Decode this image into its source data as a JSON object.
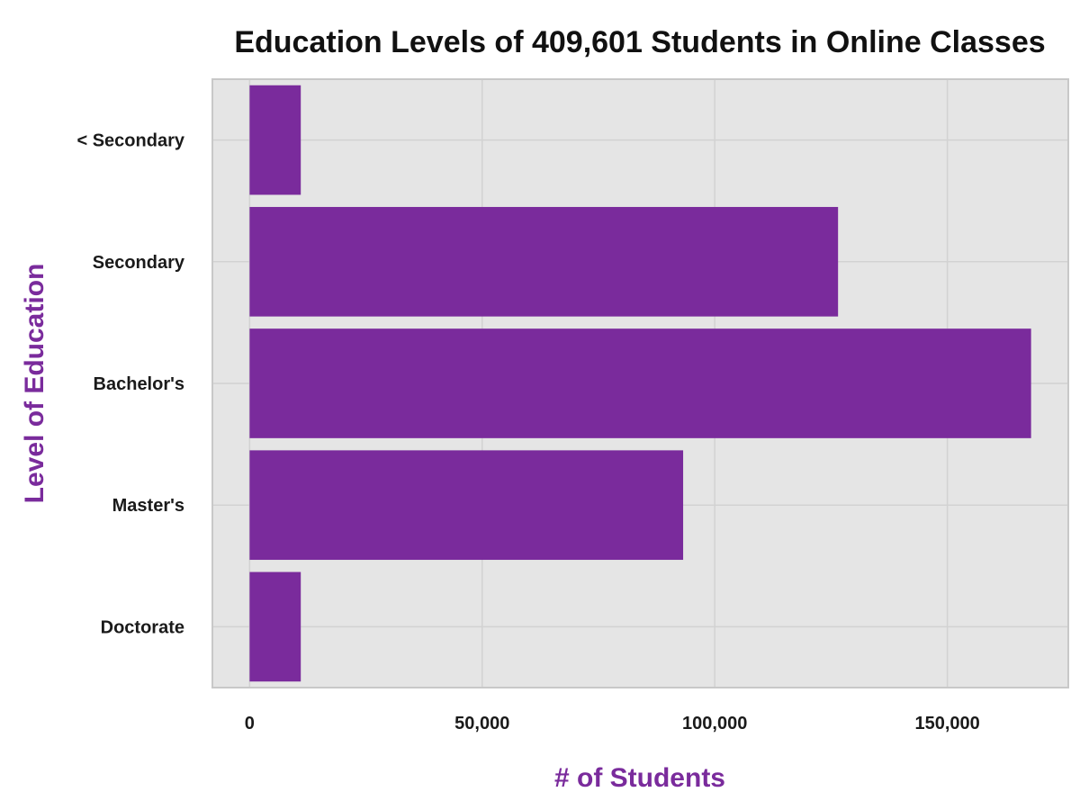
{
  "chart_data": {
    "type": "bar",
    "orientation": "horizontal",
    "title": "Education Levels of 409,601 Students in Online Classes",
    "xlabel": "# of Students",
    "ylabel": "Level of Education",
    "categories": [
      "< Secondary",
      "Secondary",
      "Bachelor's",
      "Master's",
      "Doctorate"
    ],
    "values": [
      11000,
      126500,
      168000,
      93200,
      11000
    ],
    "xlim": [
      -8000,
      176000
    ],
    "xticks": [
      0,
      50000,
      100000,
      150000
    ],
    "xtick_labels": [
      "0",
      "50,000",
      "100,000",
      "150,000"
    ],
    "grid": true,
    "colors": {
      "bar": "#7a2b9c",
      "axis_label": "#7a2b9c",
      "panel": "#e5e5e5",
      "grid": "#d2d2d2"
    }
  }
}
